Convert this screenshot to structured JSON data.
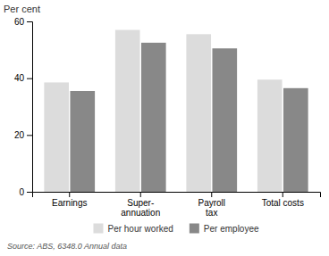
{
  "chart_data": {
    "type": "bar",
    "categories": [
      "Earnings",
      "Super-\nannuation",
      "Payroll\ntax",
      "Total costs"
    ],
    "series": [
      {
        "name": "Per hour worked",
        "color": "#dcdcdc",
        "values": [
          38.5,
          57.0,
          55.5,
          39.5
        ]
      },
      {
        "name": "Per employee",
        "color": "#888888",
        "values": [
          35.5,
          52.5,
          50.5,
          36.5
        ]
      }
    ],
    "ylabel": "Per cent",
    "ylim": [
      0,
      60
    ],
    "yticks": [
      0,
      20,
      40,
      60
    ],
    "grid": false,
    "legend": "bottom",
    "annotations": [
      "Source: ABS, 6348.0 Annual data"
    ]
  }
}
